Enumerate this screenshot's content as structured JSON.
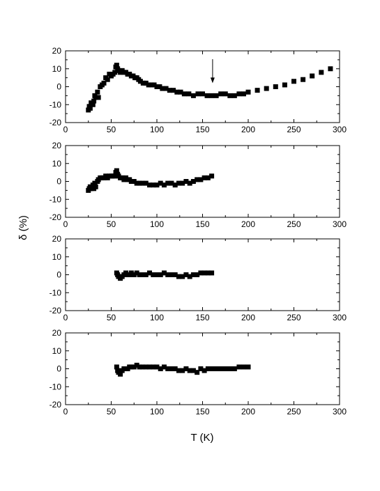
{
  "chart_data": {
    "type": "scatter",
    "xlabel": "T (K)",
    "ylabel": "δ (%)",
    "xlim": [
      0,
      300
    ],
    "ylim": [
      -20,
      20
    ],
    "x_ticks": [
      "0",
      "50",
      "100",
      "150",
      "200",
      "250",
      "300"
    ],
    "y_ticks": [
      "20",
      "10",
      "0",
      "-10",
      "-20"
    ],
    "grid": false,
    "panels": [
      {
        "series": [
          {
            "marker": "square",
            "color": "#000000",
            "x": [
              25,
              26,
              27,
              28,
              30,
              31,
              32,
              33,
              35,
              36,
              38,
              40,
              42,
              44,
              46,
              48,
              50,
              52,
              54,
              55,
              56,
              57,
              58,
              60,
              62,
              64,
              66,
              68,
              70,
              72,
              74,
              76,
              78,
              80,
              82,
              85,
              88,
              91,
              94,
              97,
              100,
              103,
              106,
              110,
              114,
              118,
              122,
              126,
              130,
              135,
              140,
              145,
              150,
              155,
              160,
              165,
              170,
              175,
              180,
              185,
              190,
              195,
              200,
              210,
              220,
              230,
              240,
              250,
              260,
              270,
              280,
              290
            ],
            "y": [
              -13,
              -11,
              -12,
              -9,
              -10,
              -8,
              -5,
              -6,
              -3,
              -6,
              0,
              1,
              2,
              5,
              4,
              7,
              6,
              7,
              8,
              11,
              12,
              10,
              9,
              8,
              9,
              8,
              8,
              7,
              7,
              6,
              6,
              5,
              5,
              4,
              3,
              2,
              2,
              1,
              1,
              1,
              0,
              0,
              -1,
              -1,
              -2,
              -2,
              -3,
              -3,
              -4,
              -4,
              -5,
              -4,
              -4,
              -5,
              -5,
              -5,
              -4,
              -4,
              -5,
              -5,
              -4,
              -4,
              -3,
              -2,
              -1,
              0,
              1,
              3,
              4,
              6,
              8,
              10
            ]
          },
          {
            "marker": "arrow",
            "x": [
              161
            ],
            "y": [
              2
            ]
          }
        ]
      },
      {
        "series": [
          {
            "marker": "square",
            "color": "#000000",
            "x": [
              25,
              26,
              27,
              28,
              30,
              31,
              32,
              33,
              35,
              36,
              38,
              40,
              42,
              44,
              46,
              48,
              50,
              52,
              54,
              55,
              56,
              57,
              58,
              60,
              62,
              64,
              66,
              68,
              70,
              72,
              75,
              78,
              81,
              84,
              88,
              92,
              96,
              100,
              104,
              108,
              112,
              116,
              120,
              124,
              128,
              132,
              136,
              140,
              144,
              148,
              152,
              156,
              160
            ],
            "y": [
              -5,
              -4,
              -3,
              -4,
              -2,
              -4,
              -1,
              -3,
              0,
              1,
              2,
              2,
              2,
              3,
              2,
              3,
              3,
              3,
              3,
              5,
              6,
              4,
              3,
              2,
              2,
              1,
              2,
              1,
              1,
              0,
              0,
              -1,
              -1,
              -1,
              -1,
              -2,
              -2,
              -2,
              -1,
              -2,
              -1,
              -1,
              -2,
              -1,
              -1,
              0,
              -1,
              0,
              1,
              1,
              2,
              2,
              3
            ]
          }
        ]
      },
      {
        "series": [
          {
            "marker": "square",
            "color": "#000000",
            "x": [
              56,
              57,
              58,
              60,
              62,
              64,
              66,
              68,
              70,
              72,
              75,
              78,
              81,
              84,
              88,
              92,
              96,
              100,
              104,
              108,
              112,
              116,
              120,
              124,
              128,
              132,
              136,
              140,
              144,
              148,
              152,
              156,
              160
            ],
            "y": [
              1,
              0,
              -1,
              -2,
              -1,
              0,
              1,
              0,
              0,
              1,
              0,
              1,
              0,
              0,
              0,
              1,
              0,
              0,
              0,
              1,
              0,
              0,
              0,
              -1,
              -1,
              0,
              -1,
              0,
              0,
              1,
              1,
              1,
              1
            ]
          }
        ]
      },
      {
        "series": [
          {
            "marker": "square",
            "color": "#000000",
            "x": [
              56,
              57,
              58,
              60,
              62,
              64,
              66,
              68,
              70,
              72,
              75,
              78,
              81,
              84,
              88,
              92,
              96,
              100,
              104,
              108,
              112,
              116,
              120,
              124,
              128,
              132,
              136,
              140,
              144,
              148,
              152,
              156,
              160,
              165,
              170,
              175,
              180,
              185,
              190,
              195,
              200
            ],
            "y": [
              1,
              -1,
              -2,
              -3,
              -1,
              0,
              0,
              0,
              1,
              1,
              1,
              2,
              1,
              1,
              1,
              1,
              1,
              1,
              0,
              1,
              0,
              0,
              0,
              -1,
              -1,
              0,
              -1,
              -1,
              -2,
              0,
              -1,
              0,
              0,
              0,
              0,
              0,
              0,
              0,
              1,
              1,
              1
            ]
          }
        ]
      }
    ]
  }
}
